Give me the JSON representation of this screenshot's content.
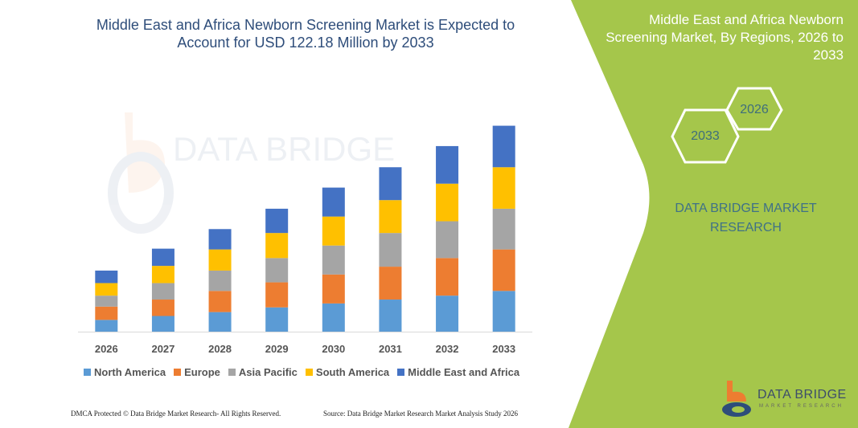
{
  "title": "Middle East and Africa Newborn Screening Market is Expected to Account for USD 122.18 Million by 2033",
  "side_panel": {
    "title": "Middle East and Africa Newborn Screening Market, By Regions, 2026 to 2033",
    "hex_start": "2026",
    "hex_end": "2033",
    "brand": "DATA BRIDGE MARKET RESEARCH",
    "background_color": "#a5c64b"
  },
  "logo": {
    "name": "DATA BRIDGE",
    "sub": "MARKET RESEARCH"
  },
  "watermark": {
    "name": "DATA BRIDGE",
    "sub": "MARKET RESEARCH"
  },
  "footer": {
    "left": "DMCA Protected © Data Bridge Market Research- All Rights Reserved.",
    "right": "Source: Data Bridge Market Research Market Analysis Study 2026"
  },
  "chart_data": {
    "type": "bar",
    "stacked": true,
    "categories": [
      "2026",
      "2027",
      "2028",
      "2029",
      "2030",
      "2031",
      "2032",
      "2033"
    ],
    "series": [
      {
        "name": "North America",
        "color": "#5b9bd5",
        "values": [
          15,
          20,
          25,
          31,
          36,
          41,
          46,
          52
        ]
      },
      {
        "name": "Europe",
        "color": "#ed7d31",
        "values": [
          17,
          21,
          27,
          32,
          37,
          42,
          48,
          53
        ]
      },
      {
        "name": "Asia Pacific",
        "color": "#a5a5a5",
        "values": [
          14,
          21,
          26,
          31,
          37,
          43,
          47,
          52
        ]
      },
      {
        "name": "South America",
        "color": "#ffc000",
        "values": [
          16,
          22,
          27,
          32,
          37,
          42,
          48,
          53
        ]
      },
      {
        "name": "Middle East and Africa",
        "color": "#4472c4",
        "values": [
          16,
          22,
          26,
          31,
          37,
          42,
          48,
          53
        ]
      }
    ],
    "ylim": [
      0,
      270
    ],
    "grid": false,
    "value_axis_shown": false,
    "legend": "bottom"
  }
}
